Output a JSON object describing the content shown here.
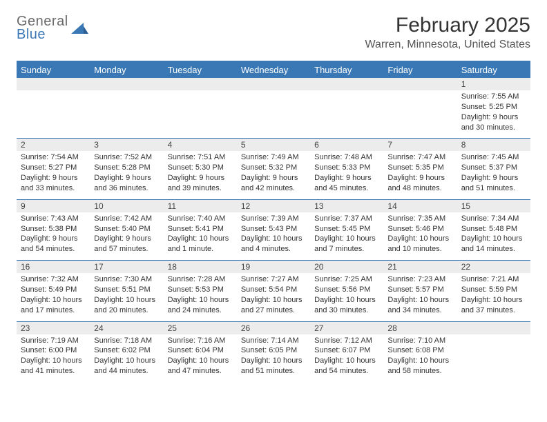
{
  "logo": {
    "line1": "General",
    "line2": "Blue",
    "iconColor": "#3a78b5"
  },
  "title": "February 2025",
  "location": "Warren, Minnesota, United States",
  "colors": {
    "headerBar": "#3a78b5",
    "dayNumBg": "#ececec",
    "text": "#333333",
    "logoGray": "#6a6a6a"
  },
  "dayNames": [
    "Sunday",
    "Monday",
    "Tuesday",
    "Wednesday",
    "Thursday",
    "Friday",
    "Saturday"
  ],
  "weeks": [
    [
      null,
      null,
      null,
      null,
      null,
      null,
      {
        "n": "1",
        "sunrise": "7:55 AM",
        "sunset": "5:25 PM",
        "daylight": "9 hours and 30 minutes."
      }
    ],
    [
      {
        "n": "2",
        "sunrise": "7:54 AM",
        "sunset": "5:27 PM",
        "daylight": "9 hours and 33 minutes."
      },
      {
        "n": "3",
        "sunrise": "7:52 AM",
        "sunset": "5:28 PM",
        "daylight": "9 hours and 36 minutes."
      },
      {
        "n": "4",
        "sunrise": "7:51 AM",
        "sunset": "5:30 PM",
        "daylight": "9 hours and 39 minutes."
      },
      {
        "n": "5",
        "sunrise": "7:49 AM",
        "sunset": "5:32 PM",
        "daylight": "9 hours and 42 minutes."
      },
      {
        "n": "6",
        "sunrise": "7:48 AM",
        "sunset": "5:33 PM",
        "daylight": "9 hours and 45 minutes."
      },
      {
        "n": "7",
        "sunrise": "7:47 AM",
        "sunset": "5:35 PM",
        "daylight": "9 hours and 48 minutes."
      },
      {
        "n": "8",
        "sunrise": "7:45 AM",
        "sunset": "5:37 PM",
        "daylight": "9 hours and 51 minutes."
      }
    ],
    [
      {
        "n": "9",
        "sunrise": "7:43 AM",
        "sunset": "5:38 PM",
        "daylight": "9 hours and 54 minutes."
      },
      {
        "n": "10",
        "sunrise": "7:42 AM",
        "sunset": "5:40 PM",
        "daylight": "9 hours and 57 minutes."
      },
      {
        "n": "11",
        "sunrise": "7:40 AM",
        "sunset": "5:41 PM",
        "daylight": "10 hours and 1 minute."
      },
      {
        "n": "12",
        "sunrise": "7:39 AM",
        "sunset": "5:43 PM",
        "daylight": "10 hours and 4 minutes."
      },
      {
        "n": "13",
        "sunrise": "7:37 AM",
        "sunset": "5:45 PM",
        "daylight": "10 hours and 7 minutes."
      },
      {
        "n": "14",
        "sunrise": "7:35 AM",
        "sunset": "5:46 PM",
        "daylight": "10 hours and 10 minutes."
      },
      {
        "n": "15",
        "sunrise": "7:34 AM",
        "sunset": "5:48 PM",
        "daylight": "10 hours and 14 minutes."
      }
    ],
    [
      {
        "n": "16",
        "sunrise": "7:32 AM",
        "sunset": "5:49 PM",
        "daylight": "10 hours and 17 minutes."
      },
      {
        "n": "17",
        "sunrise": "7:30 AM",
        "sunset": "5:51 PM",
        "daylight": "10 hours and 20 minutes."
      },
      {
        "n": "18",
        "sunrise": "7:28 AM",
        "sunset": "5:53 PM",
        "daylight": "10 hours and 24 minutes."
      },
      {
        "n": "19",
        "sunrise": "7:27 AM",
        "sunset": "5:54 PM",
        "daylight": "10 hours and 27 minutes."
      },
      {
        "n": "20",
        "sunrise": "7:25 AM",
        "sunset": "5:56 PM",
        "daylight": "10 hours and 30 minutes."
      },
      {
        "n": "21",
        "sunrise": "7:23 AM",
        "sunset": "5:57 PM",
        "daylight": "10 hours and 34 minutes."
      },
      {
        "n": "22",
        "sunrise": "7:21 AM",
        "sunset": "5:59 PM",
        "daylight": "10 hours and 37 minutes."
      }
    ],
    [
      {
        "n": "23",
        "sunrise": "7:19 AM",
        "sunset": "6:00 PM",
        "daylight": "10 hours and 41 minutes."
      },
      {
        "n": "24",
        "sunrise": "7:18 AM",
        "sunset": "6:02 PM",
        "daylight": "10 hours and 44 minutes."
      },
      {
        "n": "25",
        "sunrise": "7:16 AM",
        "sunset": "6:04 PM",
        "daylight": "10 hours and 47 minutes."
      },
      {
        "n": "26",
        "sunrise": "7:14 AM",
        "sunset": "6:05 PM",
        "daylight": "10 hours and 51 minutes."
      },
      {
        "n": "27",
        "sunrise": "7:12 AM",
        "sunset": "6:07 PM",
        "daylight": "10 hours and 54 minutes."
      },
      {
        "n": "28",
        "sunrise": "7:10 AM",
        "sunset": "6:08 PM",
        "daylight": "10 hours and 58 minutes."
      },
      null
    ]
  ],
  "labels": {
    "sunrise": "Sunrise:",
    "sunset": "Sunset:",
    "daylight": "Daylight:"
  }
}
